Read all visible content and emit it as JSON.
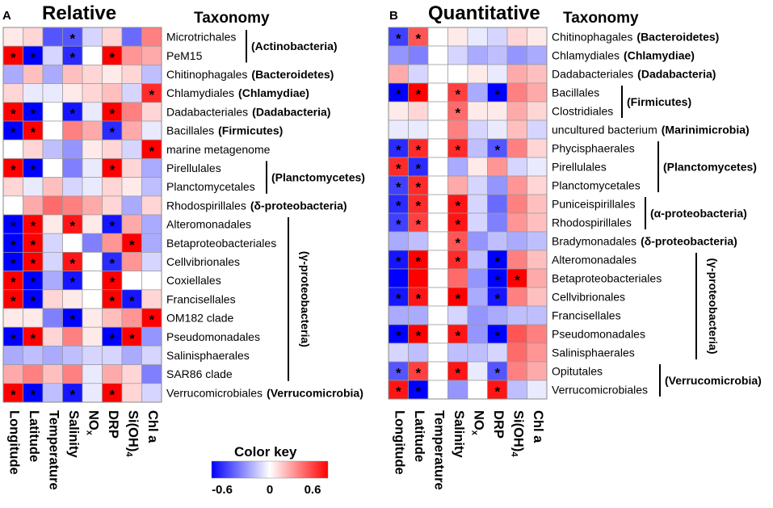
{
  "chart_data": {
    "type": "heatmap",
    "columns": [
      "Longitude",
      "Latitude",
      "Temperature",
      "Salinity",
      "NO",
      "DRP",
      "Si(OH)",
      "Chl a"
    ],
    "column_subscripts": [
      "",
      "",
      "",
      "",
      "x",
      "",
      "4",
      ""
    ],
    "color_key": {
      "title": "Color key",
      "min": -0.6,
      "mid": 0,
      "max": 0.6,
      "tick_labels": [
        "-0.6",
        "0",
        "0.6"
      ],
      "colors": {
        "low": "#0000ff",
        "mid": "#ffffff",
        "high": "#ff0000"
      }
    },
    "panels": [
      {
        "letter": "A",
        "title": "Relative",
        "taxonomy_title": "Taxonomy",
        "rows": [
          {
            "name": "Microtrichales",
            "group": ""
          },
          {
            "name": "PeM15",
            "group": ""
          },
          {
            "name": "Chitinophagales",
            "group": "(Bacteroidetes)"
          },
          {
            "name": "Chlamydiales",
            "group": "(Chlamydiae)"
          },
          {
            "name": "Dadabacteriales",
            "group": "(Dadabacteria)"
          },
          {
            "name": "Bacillales",
            "group": "(Firmicutes)"
          },
          {
            "name": "marine metagenome",
            "group": ""
          },
          {
            "name": "Pirellulales",
            "group": ""
          },
          {
            "name": "Planctomycetales",
            "group": ""
          },
          {
            "name": "Rhodospirillales",
            "group": "(δ-proteobacteria)"
          },
          {
            "name": "Alteromonadales",
            "group": ""
          },
          {
            "name": "Betaproteobacteriales",
            "group": ""
          },
          {
            "name": "Cellvibrionales",
            "group": ""
          },
          {
            "name": "Coxiellales",
            "group": ""
          },
          {
            "name": "Francisellales",
            "group": ""
          },
          {
            "name": "OM182 clade",
            "group": ""
          },
          {
            "name": "Pseudomonadales",
            "group": ""
          },
          {
            "name": "Salinisphaerales",
            "group": ""
          },
          {
            "name": "SAR86 clade",
            "group": ""
          },
          {
            "name": "Verrucomicrobiales",
            "group": "(Verrucomicrobia)"
          }
        ],
        "bracket_groups": [
          {
            "label": "(Actinobacteria)",
            "start": 0,
            "end": 1,
            "orientation": "horizontal"
          },
          {
            "label": "(Planctomycetes)",
            "start": 7,
            "end": 8,
            "orientation": "horizontal"
          },
          {
            "label": "(γ-proteobacteria)",
            "start": 10,
            "end": 18,
            "orientation": "vertical"
          }
        ],
        "values": [
          [
            0.05,
            0.1,
            -0.4,
            -0.4,
            -0.1,
            0.1,
            -0.35,
            0.3
          ],
          [
            0.6,
            -0.6,
            -0.1,
            -0.5,
            0.0,
            0.6,
            0.25,
            0.2
          ],
          [
            -0.2,
            0.15,
            -0.2,
            0.15,
            0.1,
            0.05,
            0.1,
            -0.15
          ],
          [
            0.1,
            -0.05,
            -0.05,
            0.05,
            0.1,
            0.15,
            -0.1,
            0.5
          ],
          [
            0.6,
            -0.6,
            0.0,
            -0.55,
            -0.05,
            0.6,
            0.3,
            0.1
          ],
          [
            -0.6,
            0.6,
            0.0,
            0.3,
            0.2,
            -0.5,
            0.2,
            -0.05
          ],
          [
            0.0,
            0.1,
            -0.15,
            -0.25,
            0.05,
            0.1,
            -0.1,
            0.6
          ],
          [
            0.6,
            -0.6,
            0.0,
            -0.3,
            -0.05,
            0.6,
            0.1,
            -0.2
          ],
          [
            0.1,
            -0.05,
            0.15,
            -0.1,
            -0.05,
            0.1,
            0.05,
            -0.15
          ],
          [
            0.0,
            0.2,
            0.35,
            0.3,
            0.2,
            0.1,
            -0.2,
            0.1
          ],
          [
            -0.6,
            0.6,
            0.05,
            0.55,
            0.05,
            -0.55,
            0.2,
            -0.2
          ],
          [
            -0.6,
            0.6,
            -0.1,
            0.0,
            -0.3,
            0.25,
            0.6,
            -0.2
          ],
          [
            -0.6,
            0.6,
            -0.1,
            0.55,
            0.0,
            -0.5,
            0.25,
            -0.1
          ],
          [
            0.6,
            -0.6,
            -0.2,
            -0.55,
            0.0,
            0.6,
            0.0,
            0.0
          ],
          [
            0.6,
            -0.6,
            0.1,
            0.05,
            0.0,
            0.6,
            -0.55,
            0.1
          ],
          [
            0.05,
            0.05,
            -0.3,
            -0.6,
            0.05,
            0.15,
            0.25,
            0.6
          ],
          [
            -0.8,
            0.8,
            0.1,
            0.3,
            0.05,
            -0.6,
            0.6,
            -0.25
          ],
          [
            -0.2,
            -0.15,
            -0.2,
            -0.15,
            -0.1,
            -0.1,
            -0.2,
            -0.1
          ],
          [
            0.2,
            0.3,
            0.15,
            0.3,
            -0.05,
            0.2,
            0.1,
            -0.3
          ],
          [
            0.6,
            -0.6,
            -0.15,
            -0.55,
            -0.05,
            0.6,
            0.1,
            -0.1
          ]
        ],
        "significant": [
          [
            0,
            0,
            0,
            1,
            0,
            0,
            0,
            0
          ],
          [
            1,
            1,
            0,
            1,
            0,
            1,
            0,
            0
          ],
          [
            0,
            0,
            0,
            0,
            0,
            0,
            0,
            0
          ],
          [
            0,
            0,
            0,
            0,
            0,
            0,
            0,
            1
          ],
          [
            1,
            1,
            0,
            1,
            0,
            1,
            0,
            0
          ],
          [
            1,
            1,
            0,
            0,
            0,
            1,
            0,
            0
          ],
          [
            0,
            0,
            0,
            0,
            0,
            0,
            0,
            1
          ],
          [
            1,
            1,
            0,
            0,
            0,
            1,
            0,
            0
          ],
          [
            0,
            0,
            0,
            0,
            0,
            0,
            0,
            0
          ],
          [
            0,
            0,
            0,
            0,
            0,
            0,
            0,
            0
          ],
          [
            1,
            1,
            0,
            1,
            0,
            1,
            0,
            0
          ],
          [
            1,
            1,
            0,
            0,
            0,
            0,
            1,
            0
          ],
          [
            1,
            1,
            0,
            1,
            0,
            1,
            0,
            0
          ],
          [
            1,
            1,
            0,
            1,
            0,
            1,
            0,
            0
          ],
          [
            1,
            1,
            0,
            0,
            0,
            1,
            1,
            0
          ],
          [
            0,
            0,
            0,
            1,
            0,
            0,
            0,
            1
          ],
          [
            1,
            1,
            0,
            0,
            0,
            1,
            1,
            0
          ],
          [
            0,
            0,
            0,
            0,
            0,
            0,
            0,
            0
          ],
          [
            0,
            0,
            0,
            0,
            0,
            0,
            0,
            0
          ],
          [
            1,
            1,
            0,
            1,
            0,
            1,
            0,
            0
          ]
        ]
      },
      {
        "letter": "B",
        "title": "Quantitative",
        "taxonomy_title": "Taxonomy",
        "rows": [
          {
            "name": "Chitinophagales",
            "group": "(Bacteroidetes)"
          },
          {
            "name": "Chlamydiales",
            "group": "(Chlamydiae)"
          },
          {
            "name": "Dadabacteriales",
            "group": "(Dadabacteria)"
          },
          {
            "name": "Bacillales",
            "group": ""
          },
          {
            "name": "Clostridiales",
            "group": ""
          },
          {
            "name": "uncultured bacterium",
            "group": "(Marinimicrobia)"
          },
          {
            "name": "Phycisphaerales",
            "group": ""
          },
          {
            "name": "Pirellulales",
            "group": ""
          },
          {
            "name": "Planctomycetales",
            "group": ""
          },
          {
            "name": "Puniceispirillales",
            "group": ""
          },
          {
            "name": "Rhodospirillales",
            "group": ""
          },
          {
            "name": "Bradymonadales",
            "group": "(δ-proteobacteria)"
          },
          {
            "name": "Alteromonadales",
            "group": ""
          },
          {
            "name": "Betaproteobacteriales",
            "group": ""
          },
          {
            "name": "Cellvibrionales",
            "group": ""
          },
          {
            "name": "Francisellales",
            "group": ""
          },
          {
            "name": "Pseudomonadales",
            "group": ""
          },
          {
            "name": "Salinisphaerales",
            "group": ""
          },
          {
            "name": "Opitutales",
            "group": ""
          },
          {
            "name": "Verrucomicrobiales",
            "group": ""
          }
        ],
        "bracket_groups": [
          {
            "label": "(Firmicutes)",
            "start": 3,
            "end": 4,
            "orientation": "horizontal"
          },
          {
            "label": "(Planctomycetes)",
            "start": 6,
            "end": 8,
            "orientation": "horizontal"
          },
          {
            "label": "(α-proteobacteria)",
            "start": 9,
            "end": 10,
            "orientation": "horizontal"
          },
          {
            "label": "(γ-proteobacteria)",
            "start": 12,
            "end": 17,
            "orientation": "vertical"
          },
          {
            "label": "(Verrucomicrobia)",
            "start": 18,
            "end": 19,
            "orientation": "horizontal"
          }
        ],
        "values": [
          [
            -0.45,
            0.4,
            0.0,
            0.05,
            -0.05,
            -0.1,
            0.1,
            0.05
          ],
          [
            -0.25,
            -0.3,
            0.0,
            -0.1,
            -0.2,
            -0.15,
            -0.25,
            -0.2
          ],
          [
            0.2,
            -0.1,
            0.0,
            0.0,
            0.05,
            -0.05,
            0.2,
            0.15
          ],
          [
            -0.6,
            0.6,
            0.0,
            0.45,
            -0.2,
            -0.6,
            0.3,
            0.2
          ],
          [
            0.05,
            0.1,
            0.0,
            0.35,
            0.05,
            0.05,
            0.2,
            0.1
          ],
          [
            -0.05,
            -0.05,
            0.0,
            0.3,
            -0.1,
            -0.05,
            0.15,
            -0.1
          ],
          [
            -0.5,
            0.5,
            0.0,
            0.5,
            -0.15,
            -0.4,
            0.3,
            0.1
          ],
          [
            0.5,
            -0.5,
            0.0,
            -0.2,
            0.05,
            0.25,
            -0.1,
            -0.05
          ],
          [
            -0.45,
            0.5,
            0.0,
            0.2,
            -0.1,
            -0.25,
            0.25,
            0.1
          ],
          [
            -0.5,
            0.5,
            0.0,
            0.55,
            -0.1,
            -0.35,
            0.3,
            0.15
          ],
          [
            -0.45,
            0.45,
            0.0,
            0.55,
            -0.1,
            -0.3,
            0.25,
            0.15
          ],
          [
            -0.2,
            -0.15,
            0.0,
            0.4,
            -0.25,
            -0.15,
            -0.2,
            -0.15
          ],
          [
            -0.55,
            0.6,
            0.0,
            0.5,
            -0.15,
            -0.6,
            0.3,
            0.15
          ],
          [
            -0.8,
            0.75,
            0.0,
            0.35,
            -0.25,
            -0.6,
            0.6,
            0.2
          ],
          [
            -0.55,
            0.55,
            0.0,
            0.6,
            -0.2,
            -0.55,
            0.3,
            0.15
          ],
          [
            -0.2,
            -0.2,
            0.0,
            -0.1,
            -0.25,
            -0.2,
            -0.15,
            -0.15
          ],
          [
            -0.7,
            0.7,
            0.0,
            0.55,
            -0.25,
            -0.6,
            0.4,
            0.3
          ],
          [
            -0.1,
            -0.15,
            0.0,
            -0.15,
            -0.15,
            -0.1,
            0.35,
            0.25
          ],
          [
            -0.4,
            0.45,
            0.0,
            0.55,
            -0.05,
            -0.4,
            0.3,
            0.2
          ],
          [
            0.55,
            -0.6,
            0.0,
            -0.25,
            0.0,
            0.55,
            -0.15,
            -0.05
          ]
        ],
        "significant": [
          [
            1,
            1,
            0,
            0,
            0,
            0,
            0,
            0
          ],
          [
            0,
            0,
            0,
            0,
            0,
            0,
            0,
            0
          ],
          [
            0,
            0,
            0,
            0,
            0,
            0,
            0,
            0
          ],
          [
            1,
            1,
            0,
            1,
            0,
            1,
            0,
            0
          ],
          [
            0,
            0,
            0,
            1,
            0,
            0,
            0,
            0
          ],
          [
            0,
            0,
            0,
            0,
            0,
            0,
            0,
            0
          ],
          [
            1,
            1,
            0,
            1,
            0,
            1,
            0,
            0
          ],
          [
            1,
            1,
            0,
            0,
            0,
            0,
            0,
            0
          ],
          [
            1,
            1,
            0,
            0,
            0,
            0,
            0,
            0
          ],
          [
            1,
            1,
            0,
            1,
            0,
            0,
            0,
            0
          ],
          [
            1,
            1,
            0,
            1,
            0,
            0,
            0,
            0
          ],
          [
            0,
            0,
            0,
            1,
            0,
            0,
            0,
            0
          ],
          [
            1,
            1,
            0,
            1,
            0,
            1,
            0,
            0
          ],
          [
            0,
            0,
            0,
            0,
            0,
            1,
            1,
            0
          ],
          [
            1,
            1,
            0,
            1,
            0,
            1,
            0,
            0
          ],
          [
            0,
            0,
            0,
            0,
            0,
            0,
            0,
            0
          ],
          [
            1,
            1,
            0,
            1,
            0,
            1,
            0,
            0
          ],
          [
            0,
            0,
            0,
            0,
            0,
            0,
            0,
            0
          ],
          [
            1,
            1,
            0,
            1,
            0,
            1,
            0,
            0
          ],
          [
            1,
            1,
            0,
            0,
            0,
            1,
            0,
            0
          ]
        ]
      }
    ]
  }
}
